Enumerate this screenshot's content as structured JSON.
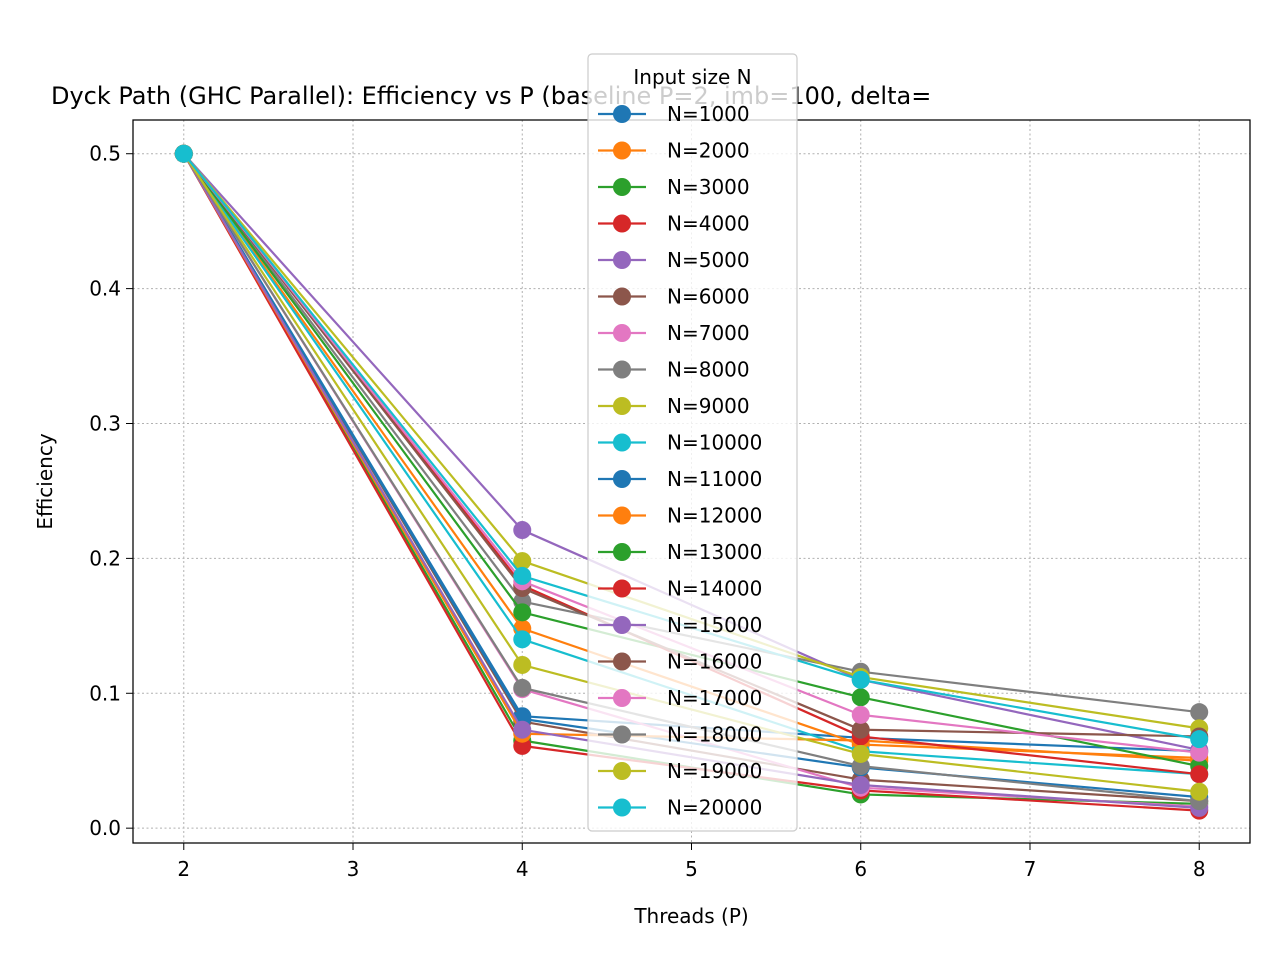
{
  "chart_data": {
    "type": "line",
    "title": "Dyck Path (GHC Parallel): Efficiency vs P  (baseline P=2, imb=100, delta=",
    "xlabel": "Threads (P)",
    "ylabel": "Efficiency",
    "xlim": [
      1.7,
      8.3
    ],
    "ylim": [
      -0.011,
      0.525
    ],
    "xticks": [
      2,
      3,
      4,
      5,
      6,
      7,
      8
    ],
    "yticks": [
      0.0,
      0.1,
      0.2,
      0.3,
      0.4,
      0.5
    ],
    "grid": true,
    "legend": {
      "title": "Input size N",
      "placement": "top-center"
    },
    "x": [
      2,
      4,
      6,
      8
    ],
    "series": [
      {
        "name": "N=1000",
        "color": "#1f77b4",
        "values": [
          0.5,
          0.083,
          0.067,
          0.057
        ]
      },
      {
        "name": "N=2000",
        "color": "#ff7f0e",
        "values": [
          0.5,
          0.148,
          0.062,
          0.052
        ]
      },
      {
        "name": "N=3000",
        "color": "#2ca02c",
        "values": [
          0.5,
          0.065,
          0.025,
          0.018
        ]
      },
      {
        "name": "N=4000",
        "color": "#d62728",
        "values": [
          0.5,
          0.061,
          0.028,
          0.013
        ]
      },
      {
        "name": "N=5000",
        "color": "#9467bd",
        "values": [
          0.5,
          0.221,
          0.11,
          0.058
        ]
      },
      {
        "name": "N=6000",
        "color": "#8c564b",
        "values": [
          0.5,
          0.079,
          0.036,
          0.02
        ]
      },
      {
        "name": "N=7000",
        "color": "#e377c2",
        "values": [
          0.5,
          0.103,
          0.03,
          0.016
        ]
      },
      {
        "name": "N=8000",
        "color": "#7f7f7f",
        "values": [
          0.5,
          0.168,
          0.116,
          0.086
        ]
      },
      {
        "name": "N=9000",
        "color": "#bcbd22",
        "values": [
          0.5,
          0.198,
          0.112,
          0.074
        ]
      },
      {
        "name": "N=10000",
        "color": "#17becf",
        "values": [
          0.5,
          0.14,
          0.057,
          0.04
        ]
      },
      {
        "name": "N=11000",
        "color": "#1f77b4",
        "values": [
          0.5,
          0.081,
          0.045,
          0.023
        ]
      },
      {
        "name": "N=12000",
        "color": "#ff7f0e",
        "values": [
          0.5,
          0.07,
          0.065,
          0.05
        ]
      },
      {
        "name": "N=13000",
        "color": "#2ca02c",
        "values": [
          0.5,
          0.16,
          0.097,
          0.046
        ]
      },
      {
        "name": "N=14000",
        "color": "#d62728",
        "values": [
          0.5,
          0.18,
          0.068,
          0.04
        ]
      },
      {
        "name": "N=15000",
        "color": "#9467bd",
        "values": [
          0.5,
          0.073,
          0.032,
          0.015
        ]
      },
      {
        "name": "N=16000",
        "color": "#8c564b",
        "values": [
          0.5,
          0.178,
          0.073,
          0.068
        ]
      },
      {
        "name": "N=17000",
        "color": "#e377c2",
        "values": [
          0.5,
          0.183,
          0.084,
          0.056
        ]
      },
      {
        "name": "N=18000",
        "color": "#7f7f7f",
        "values": [
          0.5,
          0.104,
          0.046,
          0.02
        ]
      },
      {
        "name": "N=19000",
        "color": "#bcbd22",
        "values": [
          0.5,
          0.121,
          0.055,
          0.027
        ]
      },
      {
        "name": "N=20000",
        "color": "#17becf",
        "values": [
          0.5,
          0.187,
          0.11,
          0.066
        ]
      }
    ]
  }
}
